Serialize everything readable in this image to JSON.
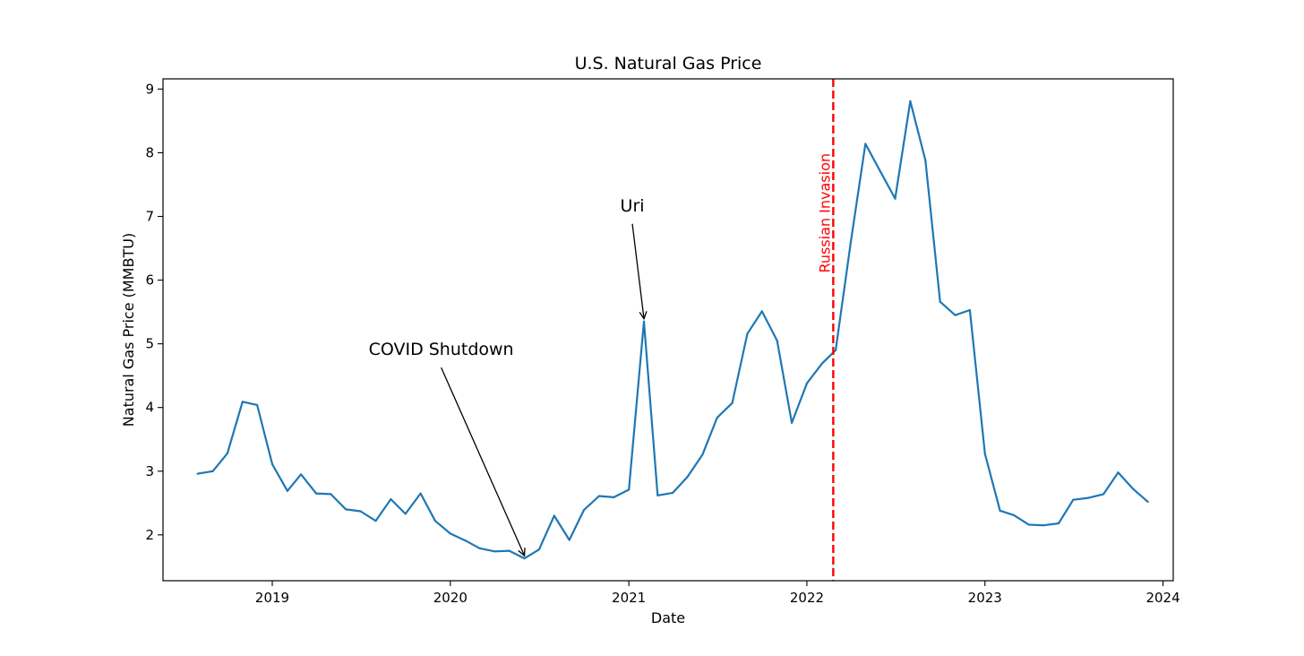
{
  "chart_data": {
    "type": "line",
    "title": "U.S. Natural Gas Price",
    "xlabel": "Date",
    "ylabel": "Natural Gas Price (MMBTU)",
    "xlim": [
      "2018-05-22",
      "2024-01-22"
    ],
    "ylim": [
      1.28,
      9.16
    ],
    "x_ticks": [
      {
        "date": "2019-01-01",
        "label": "2019"
      },
      {
        "date": "2020-01-01",
        "label": "2020"
      },
      {
        "date": "2021-01-01",
        "label": "2021"
      },
      {
        "date": "2022-01-01",
        "label": "2022"
      },
      {
        "date": "2023-01-01",
        "label": "2023"
      },
      {
        "date": "2024-01-01",
        "label": "2024"
      }
    ],
    "y_ticks": [
      2,
      3,
      4,
      5,
      6,
      7,
      8,
      9
    ],
    "grid": false,
    "series": [
      {
        "color": "#1f77b4",
        "x": [
          "2018-08-01",
          "2018-09-01",
          "2018-10-01",
          "2018-11-01",
          "2018-12-01",
          "2019-01-01",
          "2019-02-01",
          "2019-03-01",
          "2019-04-01",
          "2019-05-01",
          "2019-06-01",
          "2019-07-01",
          "2019-08-01",
          "2019-09-01",
          "2019-10-01",
          "2019-11-01",
          "2019-12-01",
          "2020-01-01",
          "2020-02-01",
          "2020-03-01",
          "2020-04-01",
          "2020-05-01",
          "2020-06-01",
          "2020-07-01",
          "2020-08-01",
          "2020-09-01",
          "2020-10-01",
          "2020-11-01",
          "2020-12-01",
          "2021-01-01",
          "2021-02-01",
          "2021-03-01",
          "2021-04-01",
          "2021-05-01",
          "2021-06-01",
          "2021-07-01",
          "2021-08-01",
          "2021-09-01",
          "2021-10-01",
          "2021-11-01",
          "2021-12-01",
          "2022-01-01",
          "2022-02-01",
          "2022-03-01",
          "2022-04-01",
          "2022-05-01",
          "2022-06-01",
          "2022-07-01",
          "2022-08-01",
          "2022-09-01",
          "2022-10-01",
          "2022-11-01",
          "2022-12-01",
          "2023-01-01",
          "2023-02-01",
          "2023-03-01",
          "2023-04-01",
          "2023-05-01",
          "2023-06-01",
          "2023-07-01",
          "2023-08-01",
          "2023-09-01",
          "2023-10-01",
          "2023-11-01",
          "2023-12-01"
        ],
        "values": [
          2.96,
          3.0,
          3.28,
          4.09,
          4.04,
          3.11,
          2.69,
          2.95,
          2.65,
          2.64,
          2.4,
          2.37,
          2.22,
          2.56,
          2.33,
          2.65,
          2.22,
          2.02,
          1.91,
          1.79,
          1.74,
          1.75,
          1.63,
          1.77,
          2.3,
          1.92,
          2.39,
          2.61,
          2.59,
          2.71,
          5.35,
          2.62,
          2.66,
          2.91,
          3.26,
          3.84,
          4.07,
          5.16,
          5.51,
          5.05,
          3.76,
          4.38,
          4.69,
          4.9,
          6.6,
          8.14,
          7.7,
          7.28,
          8.81,
          7.88,
          5.66,
          5.45,
          5.53,
          3.27,
          2.38,
          2.31,
          2.16,
          2.15,
          2.18,
          2.55,
          2.58,
          2.64,
          2.98,
          2.72,
          2.52
        ]
      }
    ],
    "vline": {
      "date": "2022-02-24",
      "label": "Russian Invasion",
      "color": "#ff0000"
    },
    "annotations": [
      {
        "text": "COVID Shutdown",
        "date": "2020-06-01",
        "value": 1.63
      },
      {
        "text": "Uri",
        "date": "2021-02-01",
        "value": 5.35
      }
    ]
  }
}
